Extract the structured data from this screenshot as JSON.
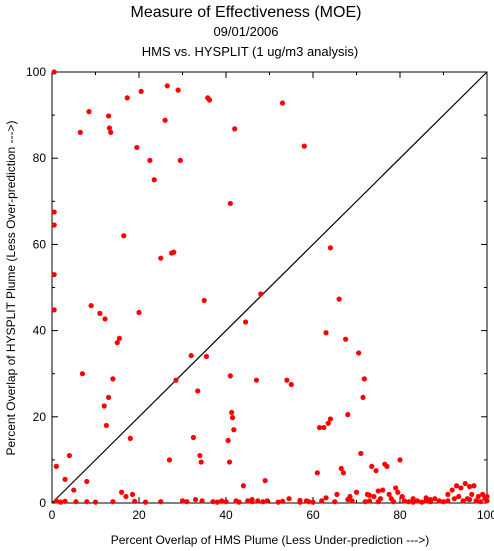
{
  "chart_data": {
    "type": "scatter",
    "title": "Measure of Effectiveness (MOE)",
    "subtitle_date": "09/01/2006",
    "subtitle_analysis": "HMS vs. HYSPLIT  (1 ug/m3 analysis)",
    "xlabel": "Percent Overlap of HMS Plume (Less Under-prediction --->)",
    "ylabel": "Percent Overlap of HYSPLIT Plume (Less Over-prediction --->)",
    "xlim": [
      0,
      100
    ],
    "ylim": [
      0,
      100
    ],
    "xticks": [
      "0",
      "20",
      "40",
      "60",
      "80",
      "100"
    ],
    "yticks": [
      "0",
      "20",
      "40",
      "60",
      "80",
      "100"
    ],
    "grid": false,
    "reference_line": "diagonal y = x",
    "marker_color": "#ff0000",
    "points": [
      [
        0.5,
        100
      ],
      [
        0.5,
        67.5
      ],
      [
        0.5,
        64.5
      ],
      [
        0.5,
        53
      ],
      [
        0.5,
        44.8
      ],
      [
        1,
        8.5
      ],
      [
        1,
        0.5
      ],
      [
        2,
        0.2
      ],
      [
        3,
        5.5
      ],
      [
        4,
        11
      ],
      [
        5,
        3
      ],
      [
        5.5,
        0.3
      ],
      [
        6.5,
        86
      ],
      [
        7,
        30
      ],
      [
        8,
        5
      ],
      [
        8.5,
        90.8
      ],
      [
        9,
        45.8
      ],
      [
        10,
        0.2
      ],
      [
        11,
        44
      ],
      [
        12,
        22.5
      ],
      [
        12.2,
        42.7
      ],
      [
        12.5,
        18
      ],
      [
        13,
        24.5
      ],
      [
        13,
        89.8
      ],
      [
        13.2,
        87
      ],
      [
        13.5,
        86
      ],
      [
        14,
        28.8
      ],
      [
        15,
        37.2
      ],
      [
        15.5,
        38.2
      ],
      [
        16,
        2.5
      ],
      [
        16.5,
        62
      ],
      [
        17,
        1.5
      ],
      [
        17.3,
        94
      ],
      [
        18,
        15
      ],
      [
        18.5,
        2
      ],
      [
        19.5,
        82.5
      ],
      [
        20,
        44.2
      ],
      [
        20.5,
        95.5
      ],
      [
        21.5,
        0.2
      ],
      [
        22.5,
        79.5
      ],
      [
        23.5,
        75
      ],
      [
        25,
        56.8
      ],
      [
        26,
        88.8
      ],
      [
        26.5,
        96.8
      ],
      [
        27,
        10
      ],
      [
        27.5,
        58
      ],
      [
        28,
        58.2
      ],
      [
        28.5,
        28.5
      ],
      [
        29,
        95.8
      ],
      [
        29.5,
        79.5
      ],
      [
        30,
        0.5
      ],
      [
        31,
        0.3
      ],
      [
        32,
        34.2
      ],
      [
        32.5,
        15.2
      ],
      [
        33.5,
        26
      ],
      [
        34,
        11
      ],
      [
        34.3,
        9.5
      ],
      [
        34.5,
        0.5
      ],
      [
        35,
        47
      ],
      [
        35.5,
        34
      ],
      [
        35.8,
        94
      ],
      [
        36.2,
        93.5
      ],
      [
        37,
        0.3
      ],
      [
        38,
        0.2
      ],
      [
        39,
        0.5
      ],
      [
        40,
        0.3
      ],
      [
        40.5,
        14.5
      ],
      [
        40.8,
        9.5
      ],
      [
        41,
        29.5
      ],
      [
        41,
        69.5
      ],
      [
        41.3,
        21
      ],
      [
        41.5,
        19.8
      ],
      [
        41.8,
        17
      ],
      [
        42,
        86.8
      ],
      [
        42.3,
        0.5
      ],
      [
        43,
        0.2
      ],
      [
        44,
        4
      ],
      [
        44.5,
        42
      ],
      [
        45,
        0.5
      ],
      [
        46,
        0.3
      ],
      [
        47,
        28.5
      ],
      [
        47.3,
        0.5
      ],
      [
        48,
        48.5
      ],
      [
        48.5,
        0.3
      ],
      [
        49,
        5.2
      ],
      [
        49.5,
        0.5
      ],
      [
        52,
        0.2
      ],
      [
        53,
        92.8
      ],
      [
        54,
        28.5
      ],
      [
        54.5,
        1
      ],
      [
        55,
        27.5
      ],
      [
        57,
        0.2
      ],
      [
        58,
        82.8
      ],
      [
        58.5,
        0.5
      ],
      [
        59,
        0.3
      ],
      [
        60,
        0.2
      ],
      [
        61,
        7
      ],
      [
        61.5,
        17.5
      ],
      [
        62,
        0.5
      ],
      [
        62.5,
        17.5
      ],
      [
        63,
        39.5
      ],
      [
        63.5,
        18.5
      ],
      [
        64,
        19.5
      ],
      [
        64,
        59.2
      ],
      [
        65,
        0.3
      ],
      [
        65.5,
        2
      ],
      [
        66,
        47.3
      ],
      [
        66.5,
        8
      ],
      [
        67,
        7
      ],
      [
        67.5,
        38
      ],
      [
        68,
        20.5
      ],
      [
        68.5,
        1.5
      ],
      [
        69,
        0.5
      ],
      [
        70,
        2.5
      ],
      [
        70.5,
        34.8
      ],
      [
        71,
        11.5
      ],
      [
        71.5,
        24.5
      ],
      [
        71.8,
        28.8
      ],
      [
        72,
        0.3
      ],
      [
        72.5,
        2
      ],
      [
        73,
        0.5
      ],
      [
        73.5,
        8.5
      ],
      [
        74,
        1.5
      ],
      [
        74.5,
        7.5
      ],
      [
        75,
        0.3
      ],
      [
        75.5,
        1
      ],
      [
        76,
        3
      ],
      [
        76.5,
        9
      ],
      [
        77,
        8.5
      ],
      [
        77.5,
        2
      ],
      [
        78,
        1
      ],
      [
        78.5,
        0.3
      ],
      [
        79,
        3.5
      ],
      [
        79.5,
        2.5
      ],
      [
        80,
        10
      ],
      [
        80.5,
        1.5
      ],
      [
        81,
        0.5
      ],
      [
        82,
        0.3
      ],
      [
        83,
        1
      ],
      [
        84,
        0.5
      ],
      [
        85,
        0.2
      ],
      [
        86,
        0.5
      ],
      [
        87,
        0.3
      ],
      [
        88,
        1
      ],
      [
        89,
        0.5
      ],
      [
        90,
        0.3
      ],
      [
        91,
        2
      ],
      [
        92,
        3
      ],
      [
        92.5,
        1
      ],
      [
        93,
        4
      ],
      [
        93.5,
        1.5
      ],
      [
        94,
        3.5
      ],
      [
        94.5,
        0.5
      ],
      [
        95,
        4.5
      ],
      [
        95.5,
        1
      ],
      [
        96,
        3.8
      ],
      [
        96.5,
        2
      ],
      [
        97,
        4
      ],
      [
        97.5,
        0.5
      ],
      [
        98,
        1.5
      ],
      [
        98.5,
        0.3
      ],
      [
        99,
        2
      ],
      [
        99.5,
        1
      ],
      [
        100,
        0.5
      ],
      [
        100,
        1.5
      ],
      [
        87,
        0.8
      ],
      [
        83,
        0.2
      ],
      [
        75,
        2.8
      ],
      [
        73,
        1.8
      ],
      [
        68,
        0.8
      ],
      [
        63,
        1.2
      ],
      [
        57,
        0.6
      ],
      [
        53,
        0.4
      ],
      [
        46,
        0.8
      ],
      [
        39,
        0.4
      ],
      [
        33,
        0.8
      ],
      [
        25,
        0.3
      ],
      [
        19,
        0.4
      ],
      [
        14,
        0.3
      ],
      [
        8,
        0.3
      ],
      [
        3,
        0.4
      ],
      [
        96,
        0.8
      ],
      [
        91,
        0.5
      ],
      [
        86,
        1.2
      ]
    ]
  }
}
